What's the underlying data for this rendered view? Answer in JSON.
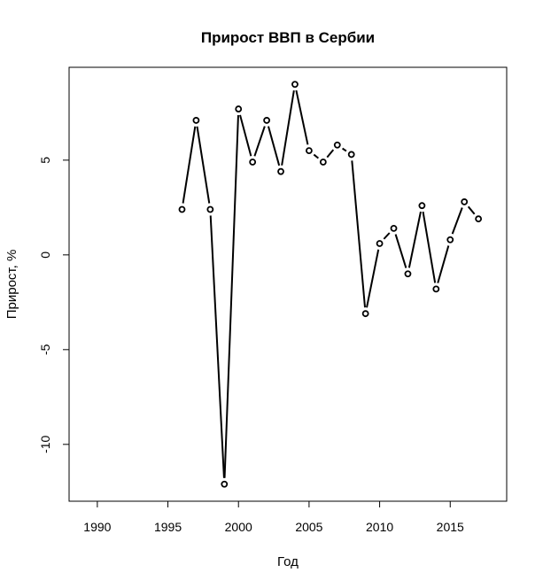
{
  "chart_data": {
    "type": "line",
    "title": "Прирост ВВП в Сербии",
    "xlabel": "Год",
    "ylabel": "Прирост, %",
    "x": [
      1996,
      1997,
      1998,
      1999,
      2000,
      2001,
      2002,
      2003,
      2004,
      2005,
      2006,
      2007,
      2008,
      2009,
      2010,
      2011,
      2012,
      2013,
      2014,
      2015,
      2016,
      2017
    ],
    "series": [
      {
        "values": [
          2.4,
          7.1,
          2.4,
          -12.1,
          7.7,
          4.9,
          7.1,
          4.4,
          9.0,
          5.5,
          4.9,
          5.8,
          5.3,
          -3.1,
          0.6,
          1.4,
          -1.0,
          2.6,
          -1.8,
          0.8,
          2.8,
          1.9
        ]
      }
    ],
    "xlim": [
      1988,
      2019
    ],
    "ylim": [
      -13.0,
      9.9
    ],
    "xticks": [
      1990,
      1995,
      2000,
      2005,
      2010,
      2015
    ],
    "yticks": [
      -10,
      -5,
      0,
      5
    ],
    "grid": false,
    "marker": "open-circle",
    "line_color": "#000000"
  }
}
